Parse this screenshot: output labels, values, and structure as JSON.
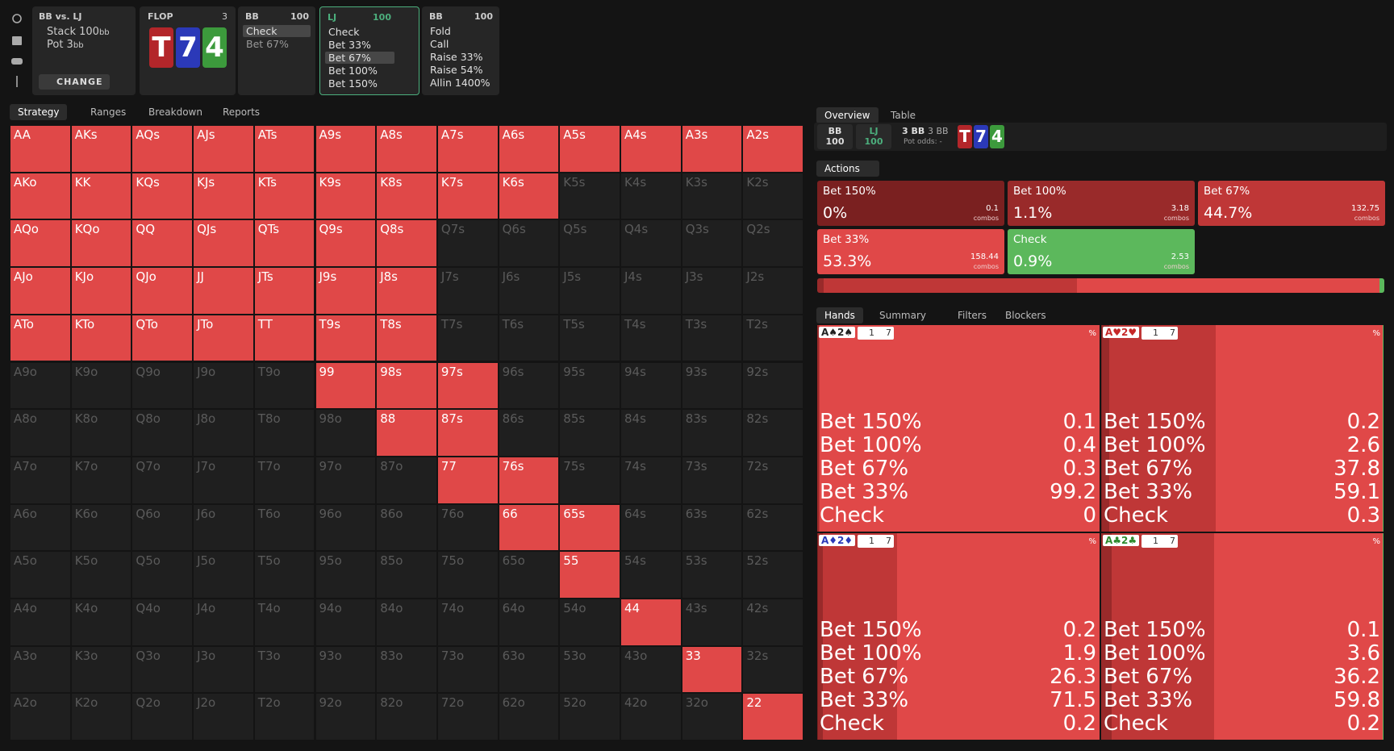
{
  "spot": {
    "title": "BB vs. LJ",
    "stack": "Stack 100",
    "stack_unit": "bb",
    "pot": "Pot 3",
    "pot_unit": "bb",
    "button": "CHANGE"
  },
  "flop": {
    "title": "FLOP",
    "count": "3",
    "cards": [
      {
        "rank": "T",
        "color": "#b3262a"
      },
      {
        "rank": "7",
        "color": "#2b39b8"
      },
      {
        "rank": "4",
        "color": "#3c9a3c"
      }
    ]
  },
  "players": [
    {
      "name": "BB",
      "stack": "100",
      "actions": [
        "Check",
        "Bet 67%"
      ],
      "selected": 0,
      "active": false
    },
    {
      "name": "LJ",
      "stack": "100",
      "actions": [
        "Check",
        "Bet 33%",
        "Bet 67%",
        "Bet 100%",
        "Bet 150%"
      ],
      "selected": 2,
      "active": true
    },
    {
      "name": "BB",
      "stack": "100",
      "actions": [
        "Fold",
        "Call",
        "Raise 33%",
        "Raise 54%",
        "Allin 1400%"
      ],
      "selected": null,
      "active": false
    }
  ],
  "left_tabs": [
    "Strategy",
    "Ranges",
    "Breakdown",
    "Reports"
  ],
  "matrix": {
    "active_color": "#e04848",
    "inactive_color": "#1f1f1f",
    "rows": [
      [
        "AA",
        "AKs",
        "AQs",
        "AJs",
        "ATs",
        "A9s",
        "A8s",
        "A7s",
        "A6s",
        "A5s",
        "A4s",
        "A3s",
        "A2s"
      ],
      [
        "AKo",
        "KK",
        "KQs",
        "KJs",
        "KTs",
        "K9s",
        "K8s",
        "K7s",
        "K6s",
        "K5s",
        "K4s",
        "K3s",
        "K2s"
      ],
      [
        "AQo",
        "KQo",
        "QQ",
        "QJs",
        "QTs",
        "Q9s",
        "Q8s",
        "Q7s",
        "Q6s",
        "Q5s",
        "Q4s",
        "Q3s",
        "Q2s"
      ],
      [
        "AJo",
        "KJo",
        "QJo",
        "JJ",
        "JTs",
        "J9s",
        "J8s",
        "J7s",
        "J6s",
        "J5s",
        "J4s",
        "J3s",
        "J2s"
      ],
      [
        "ATo",
        "KTo",
        "QTo",
        "JTo",
        "TT",
        "T9s",
        "T8s",
        "T7s",
        "T6s",
        "T5s",
        "T4s",
        "T3s",
        "T2s"
      ],
      [
        "A9o",
        "K9o",
        "Q9o",
        "J9o",
        "T9o",
        "99",
        "98s",
        "97s",
        "96s",
        "95s",
        "94s",
        "93s",
        "92s"
      ],
      [
        "A8o",
        "K8o",
        "Q8o",
        "J8o",
        "T8o",
        "98o",
        "88",
        "87s",
        "86s",
        "85s",
        "84s",
        "83s",
        "82s"
      ],
      [
        "A7o",
        "K7o",
        "Q7o",
        "J7o",
        "T7o",
        "97o",
        "87o",
        "77",
        "76s",
        "75s",
        "74s",
        "73s",
        "72s"
      ],
      [
        "A6o",
        "K6o",
        "Q6o",
        "J6o",
        "T6o",
        "96o",
        "86o",
        "76o",
        "66",
        "65s",
        "64s",
        "63s",
        "62s"
      ],
      [
        "A5o",
        "K5o",
        "Q5o",
        "J5o",
        "T5o",
        "95o",
        "85o",
        "75o",
        "65o",
        "55",
        "54s",
        "53s",
        "52s"
      ],
      [
        "A4o",
        "K4o",
        "Q4o",
        "J4o",
        "T4o",
        "94o",
        "84o",
        "74o",
        "64o",
        "54o",
        "44",
        "43s",
        "42s"
      ],
      [
        "A3o",
        "K3o",
        "Q3o",
        "J3o",
        "T3o",
        "93o",
        "83o",
        "73o",
        "63o",
        "53o",
        "43o",
        "33",
        "32s"
      ],
      [
        "A2o",
        "K2o",
        "Q2o",
        "J2o",
        "T2o",
        "92o",
        "82o",
        "72o",
        "62o",
        "52o",
        "42o",
        "32o",
        "22"
      ]
    ],
    "active": [
      [
        true,
        true,
        true,
        true,
        true,
        true,
        true,
        true,
        true,
        true,
        true,
        true,
        true
      ],
      [
        true,
        true,
        true,
        true,
        true,
        true,
        true,
        true,
        true,
        false,
        false,
        false,
        false
      ],
      [
        true,
        true,
        true,
        true,
        true,
        true,
        true,
        false,
        false,
        false,
        false,
        false,
        false
      ],
      [
        true,
        true,
        true,
        true,
        true,
        true,
        true,
        false,
        false,
        false,
        false,
        false,
        false
      ],
      [
        true,
        true,
        true,
        true,
        true,
        true,
        true,
        false,
        false,
        false,
        false,
        false,
        false
      ],
      [
        false,
        false,
        false,
        false,
        false,
        true,
        true,
        true,
        false,
        false,
        false,
        false,
        false
      ],
      [
        false,
        false,
        false,
        false,
        false,
        false,
        true,
        true,
        false,
        false,
        false,
        false,
        false
      ],
      [
        false,
        false,
        false,
        false,
        false,
        false,
        false,
        true,
        true,
        false,
        false,
        false,
        false
      ],
      [
        false,
        false,
        false,
        false,
        false,
        false,
        false,
        false,
        true,
        true,
        false,
        false,
        false
      ],
      [
        false,
        false,
        false,
        false,
        false,
        false,
        false,
        false,
        false,
        true,
        false,
        false,
        false
      ],
      [
        false,
        false,
        false,
        false,
        false,
        false,
        false,
        false,
        false,
        false,
        true,
        false,
        false
      ],
      [
        false,
        false,
        false,
        false,
        false,
        false,
        false,
        false,
        false,
        false,
        false,
        true,
        false
      ],
      [
        false,
        false,
        false,
        false,
        false,
        false,
        false,
        false,
        false,
        false,
        false,
        false,
        true
      ]
    ]
  },
  "right_tabs": [
    "Overview",
    "Table"
  ],
  "summary": {
    "players": [
      {
        "name": "BB",
        "stack": "100"
      },
      {
        "name": "LJ",
        "stack": "100"
      }
    ],
    "pot": "3 BB",
    "pot_total": "3 BB",
    "pot_odds": "Pot odds: -"
  },
  "actions_menu": "Actions",
  "combos_label": "combos",
  "actions": [
    {
      "name": "Bet 150%",
      "percent": 0,
      "percent_label": "0%",
      "combos": "0.1",
      "color": "#7a2020"
    },
    {
      "name": "Bet 100%",
      "percent": 1.1,
      "percent_label": "1.1%",
      "combos": "3.18",
      "color": "#992a2a"
    },
    {
      "name": "Bet 67%",
      "percent": 44.7,
      "percent_label": "44.7%",
      "combos": "132.75",
      "color": "#bf3737"
    },
    {
      "name": "Bet 33%",
      "percent": 53.3,
      "percent_label": "53.3%",
      "combos": "158.44",
      "color": "#e04848"
    },
    {
      "name": "Check",
      "percent": 0.9,
      "percent_label": "0.9%",
      "combos": "2.53",
      "color": "#5cb85c"
    }
  ],
  "hand_tabs": [
    "Hands",
    "Summary",
    "Filters",
    "Blockers"
  ],
  "hands": [
    {
      "combo": "A♠2♠",
      "combo_color": "#222222",
      "badge_a": "1",
      "badge_b": "7",
      "unit": "%",
      "rows": [
        {
          "action": "Bet 150%",
          "value": 0.1
        },
        {
          "action": "Bet 100%",
          "value": 0.4
        },
        {
          "action": "Bet 67%",
          "value": 0.3
        },
        {
          "action": "Bet 33%",
          "value": 99.2
        },
        {
          "action": "Check",
          "value": 0
        }
      ]
    },
    {
      "combo": "A♥2♥",
      "combo_color": "#c62828",
      "badge_a": "1",
      "badge_b": "7",
      "unit": "%",
      "rows": [
        {
          "action": "Bet 150%",
          "value": 0.2
        },
        {
          "action": "Bet 100%",
          "value": 2.6
        },
        {
          "action": "Bet 67%",
          "value": 37.8
        },
        {
          "action": "Bet 33%",
          "value": 59.1
        },
        {
          "action": "Check",
          "value": 0.3
        }
      ]
    },
    {
      "combo": "A♦2♦",
      "combo_color": "#2b39b8",
      "badge_a": "1",
      "badge_b": "7",
      "unit": "%",
      "rows": [
        {
          "action": "Bet 150%",
          "value": 0.2
        },
        {
          "action": "Bet 100%",
          "value": 1.9
        },
        {
          "action": "Bet 67%",
          "value": 26.3
        },
        {
          "action": "Bet 33%",
          "value": 71.5
        },
        {
          "action": "Check",
          "value": 0.2
        }
      ]
    },
    {
      "combo": "A♣2♣",
      "combo_color": "#2e8b2e",
      "badge_a": "1",
      "badge_b": "7",
      "unit": "%",
      "rows": [
        {
          "action": "Bet 150%",
          "value": 0.1
        },
        {
          "action": "Bet 100%",
          "value": 3.6
        },
        {
          "action": "Bet 67%",
          "value": 36.2
        },
        {
          "action": "Bet 33%",
          "value": 59.8
        },
        {
          "action": "Check",
          "value": 0.2
        }
      ]
    }
  ]
}
